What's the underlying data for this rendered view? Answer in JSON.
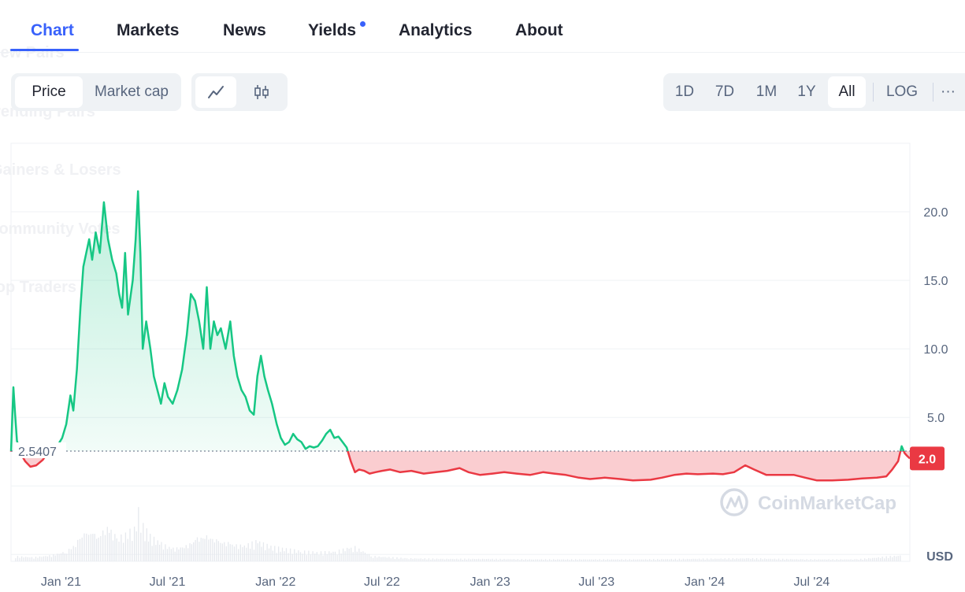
{
  "background_menu": [
    "New Pairs",
    "Trending Pairs",
    "Gainers & Losers",
    "Community Votes",
    "Top Traders"
  ],
  "tabs": [
    {
      "label": "Chart",
      "active": true
    },
    {
      "label": "Markets"
    },
    {
      "label": "News"
    },
    {
      "label": "Yields",
      "has_dot": true
    },
    {
      "label": "Analytics"
    },
    {
      "label": "About"
    }
  ],
  "metric_toggle": {
    "options": [
      "Price",
      "Market cap"
    ],
    "selected": "Price"
  },
  "chart_style_toggle": {
    "options": [
      "line-chart-icon",
      "candlestick-icon"
    ],
    "selected": "line-chart-icon"
  },
  "range_toggle": {
    "options": [
      "1D",
      "7D",
      "1M",
      "1Y",
      "All"
    ],
    "selected": "All",
    "log_label": "LOG",
    "more_label": "···"
  },
  "colors": {
    "accent": "#3861fb",
    "up": "#16c784",
    "down": "#ea3943",
    "grid": "#eff2f5"
  },
  "watermark": "CoinMarketCap",
  "chart_data": {
    "type": "area",
    "x_ticks": [
      "Jan '21",
      "Jul '21",
      "Jan '22",
      "Jul '22",
      "Jan '23",
      "Jul '23",
      "Jan '24",
      "Jul '24"
    ],
    "y_ticks": [
      "20.0",
      "15.0",
      "10.0",
      "5.0"
    ],
    "currency_label": "USD",
    "baseline_value": 2.5407,
    "baseline_label": "2.5407",
    "current_value": 2.0,
    "current_label": "2.0",
    "ylim": [
      -5.5,
      25
    ],
    "x_range": [
      "2020-10-08",
      "2024-12-15"
    ],
    "series": [
      {
        "points": [
          [
            "2020-10-08",
            2.5
          ],
          [
            "2020-10-12",
            7.2
          ],
          [
            "2020-10-15",
            5.2
          ],
          [
            "2020-10-18",
            3.3
          ],
          [
            "2020-10-24",
            2.4
          ],
          [
            "2020-11-01",
            1.8
          ],
          [
            "2020-11-10",
            1.4
          ],
          [
            "2020-11-20",
            1.5
          ],
          [
            "2020-12-01",
            1.9
          ],
          [
            "2020-12-06",
            2.2
          ],
          [
            "2020-12-09",
            2.9
          ],
          [
            "2020-12-11",
            2.5
          ],
          [
            "2020-12-14",
            2.2
          ],
          [
            "2020-12-18",
            2.6
          ],
          [
            "2020-12-24",
            2.8
          ],
          [
            "2021-01-03",
            3.5
          ],
          [
            "2021-01-10",
            4.5
          ],
          [
            "2021-01-17",
            6.6
          ],
          [
            "2021-01-22",
            5.5
          ],
          [
            "2021-01-28",
            8.5
          ],
          [
            "2021-02-03",
            13
          ],
          [
            "2021-02-08",
            16
          ],
          [
            "2021-02-13",
            17
          ],
          [
            "2021-02-18",
            18
          ],
          [
            "2021-02-23",
            16.5
          ],
          [
            "2021-03-01",
            18.5
          ],
          [
            "2021-03-08",
            17
          ],
          [
            "2021-03-15",
            20.7
          ],
          [
            "2021-03-22",
            18
          ],
          [
            "2021-03-29",
            16.5
          ],
          [
            "2021-04-05",
            15.5
          ],
          [
            "2021-04-10",
            14
          ],
          [
            "2021-04-15",
            13
          ],
          [
            "2021-04-20",
            17
          ],
          [
            "2021-04-25",
            12.5
          ],
          [
            "2021-05-03",
            15
          ],
          [
            "2021-05-08",
            18
          ],
          [
            "2021-05-12",
            21.5
          ],
          [
            "2021-05-16",
            17
          ],
          [
            "2021-05-20",
            10
          ],
          [
            "2021-05-26",
            12
          ],
          [
            "2021-06-02",
            10
          ],
          [
            "2021-06-08",
            8
          ],
          [
            "2021-06-14",
            7
          ],
          [
            "2021-06-20",
            6
          ],
          [
            "2021-06-26",
            7.5
          ],
          [
            "2021-07-02",
            6.5
          ],
          [
            "2021-07-10",
            6
          ],
          [
            "2021-07-18",
            7
          ],
          [
            "2021-07-26",
            8.5
          ],
          [
            "2021-08-03",
            11
          ],
          [
            "2021-08-10",
            14
          ],
          [
            "2021-08-17",
            13.5
          ],
          [
            "2021-08-24",
            12
          ],
          [
            "2021-08-31",
            10
          ],
          [
            "2021-09-06",
            14.5
          ],
          [
            "2021-09-12",
            10
          ],
          [
            "2021-09-18",
            12
          ],
          [
            "2021-09-24",
            11
          ],
          [
            "2021-09-30",
            11.5
          ],
          [
            "2021-10-08",
            10
          ],
          [
            "2021-10-16",
            12
          ],
          [
            "2021-10-22",
            9.5
          ],
          [
            "2021-10-28",
            8
          ],
          [
            "2021-11-04",
            7
          ],
          [
            "2021-11-11",
            6.5
          ],
          [
            "2021-11-18",
            5.5
          ],
          [
            "2021-11-25",
            5.2
          ],
          [
            "2021-12-01",
            8
          ],
          [
            "2021-12-07",
            9.5
          ],
          [
            "2021-12-13",
            8
          ],
          [
            "2021-12-19",
            7
          ],
          [
            "2021-12-26",
            6
          ],
          [
            "2022-01-03",
            4.5
          ],
          [
            "2022-01-10",
            3.5
          ],
          [
            "2022-01-17",
            3
          ],
          [
            "2022-01-24",
            3.2
          ],
          [
            "2022-01-31",
            3.8
          ],
          [
            "2022-02-07",
            3.4
          ],
          [
            "2022-02-14",
            3.2
          ],
          [
            "2022-02-21",
            2.7
          ],
          [
            "2022-02-28",
            2.9
          ],
          [
            "2022-03-07",
            2.8
          ],
          [
            "2022-03-14",
            2.9
          ],
          [
            "2022-03-21",
            3.3
          ],
          [
            "2022-03-28",
            3.8
          ],
          [
            "2022-04-04",
            4.1
          ],
          [
            "2022-04-11",
            3.5
          ],
          [
            "2022-04-18",
            3.6
          ],
          [
            "2022-04-25",
            3.2
          ],
          [
            "2022-05-02",
            2.8
          ],
          [
            "2022-05-09",
            1.8
          ],
          [
            "2022-05-16",
            1.0
          ],
          [
            "2022-05-23",
            1.2
          ],
          [
            "2022-06-01",
            1.1
          ],
          [
            "2022-06-10",
            0.9
          ],
          [
            "2022-06-20",
            1.0
          ],
          [
            "2022-07-01",
            1.1
          ],
          [
            "2022-07-15",
            1.2
          ],
          [
            "2022-08-01",
            1.0
          ],
          [
            "2022-08-20",
            1.1
          ],
          [
            "2022-09-10",
            0.9
          ],
          [
            "2022-10-01",
            1.0
          ],
          [
            "2022-10-20",
            1.1
          ],
          [
            "2022-11-10",
            1.3
          ],
          [
            "2022-11-25",
            1.0
          ],
          [
            "2022-12-15",
            0.8
          ],
          [
            "2023-01-05",
            0.9
          ],
          [
            "2023-01-25",
            1.0
          ],
          [
            "2023-02-15",
            0.9
          ],
          [
            "2023-03-10",
            0.8
          ],
          [
            "2023-04-01",
            1.0
          ],
          [
            "2023-04-20",
            0.9
          ],
          [
            "2023-05-10",
            0.8
          ],
          [
            "2023-06-01",
            0.6
          ],
          [
            "2023-06-20",
            0.5
          ],
          [
            "2023-07-15",
            0.6
          ],
          [
            "2023-08-10",
            0.5
          ],
          [
            "2023-09-01",
            0.4
          ],
          [
            "2023-10-01",
            0.45
          ],
          [
            "2023-10-20",
            0.6
          ],
          [
            "2023-11-10",
            0.8
          ],
          [
            "2023-12-01",
            0.9
          ],
          [
            "2023-12-20",
            0.85
          ],
          [
            "2024-01-15",
            0.9
          ],
          [
            "2024-02-01",
            0.85
          ],
          [
            "2024-02-20",
            1.0
          ],
          [
            "2024-03-10",
            1.5
          ],
          [
            "2024-03-25",
            1.2
          ],
          [
            "2024-04-15",
            0.8
          ],
          [
            "2024-05-10",
            0.8
          ],
          [
            "2024-06-01",
            0.8
          ],
          [
            "2024-06-20",
            0.6
          ],
          [
            "2024-07-10",
            0.4
          ],
          [
            "2024-08-05",
            0.4
          ],
          [
            "2024-09-01",
            0.45
          ],
          [
            "2024-09-25",
            0.55
          ],
          [
            "2024-10-20",
            0.6
          ],
          [
            "2024-11-05",
            0.7
          ],
          [
            "2024-11-15",
            1.2
          ],
          [
            "2024-11-25",
            1.8
          ],
          [
            "2024-12-01",
            2.9
          ],
          [
            "2024-12-06",
            2.4
          ],
          [
            "2024-12-10",
            2.2
          ],
          [
            "2024-12-15",
            2.0
          ]
        ]
      }
    ],
    "volume": [
      [
        "2020-10-15",
        0.1
      ],
      [
        "2020-11-15",
        0.08
      ],
      [
        "2020-12-15",
        0.12
      ],
      [
        "2021-01-10",
        0.2
      ],
      [
        "2021-01-25",
        0.35
      ],
      [
        "2021-02-05",
        0.55
      ],
      [
        "2021-02-20",
        0.6
      ],
      [
        "2021-03-05",
        0.5
      ],
      [
        "2021-03-20",
        0.7
      ],
      [
        "2021-04-05",
        0.45
      ],
      [
        "2021-04-20",
        0.55
      ],
      [
        "2021-05-05",
        0.65
      ],
      [
        "2021-05-12",
        1.0
      ],
      [
        "2021-05-20",
        0.7
      ],
      [
        "2021-06-01",
        0.5
      ],
      [
        "2021-06-20",
        0.35
      ],
      [
        "2021-07-10",
        0.25
      ],
      [
        "2021-08-01",
        0.3
      ],
      [
        "2021-08-20",
        0.45
      ],
      [
        "2021-09-05",
        0.5
      ],
      [
        "2021-09-25",
        0.4
      ],
      [
        "2021-10-15",
        0.35
      ],
      [
        "2021-11-05",
        0.3
      ],
      [
        "2021-12-01",
        0.4
      ],
      [
        "2021-12-20",
        0.3
      ],
      [
        "2022-01-15",
        0.25
      ],
      [
        "2022-02-15",
        0.2
      ],
      [
        "2022-03-15",
        0.18
      ],
      [
        "2022-04-15",
        0.2
      ],
      [
        "2022-05-12",
        0.3
      ],
      [
        "2022-06-15",
        0.1
      ],
      [
        "2022-08-15",
        0.06
      ],
      [
        "2022-10-15",
        0.05
      ],
      [
        "2022-12-15",
        0.05
      ],
      [
        "2023-03-15",
        0.04
      ],
      [
        "2023-06-15",
        0.04
      ],
      [
        "2023-09-15",
        0.04
      ],
      [
        "2023-12-15",
        0.05
      ],
      [
        "2024-03-15",
        0.06
      ],
      [
        "2024-06-15",
        0.04
      ],
      [
        "2024-09-15",
        0.04
      ],
      [
        "2024-12-01",
        0.12
      ]
    ]
  }
}
